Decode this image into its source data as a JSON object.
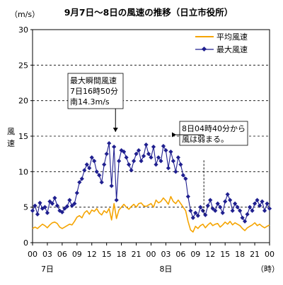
{
  "chart_data": {
    "type": "line",
    "title": "9月7日～8日の風速の推移（日立市役所）",
    "unit_label": "（m/s）",
    "ylabel": "風速",
    "x_unit_label": "（時）",
    "x_ticks": [
      "00",
      "03",
      "06",
      "09",
      "12",
      "15",
      "18",
      "21",
      "00",
      "03",
      "06",
      "09",
      "12",
      "15",
      "18",
      "21",
      "00"
    ],
    "x_day_labels": [
      {
        "tick_index": 1,
        "label": "7日"
      },
      {
        "tick_index": 9,
        "label": "8日"
      }
    ],
    "ylim": [
      0,
      30
    ],
    "y_ticks": [
      0,
      5,
      10,
      15,
      20,
      25,
      30
    ],
    "grid": "horizontal dashed",
    "legend_position": "top-right",
    "x_range_hours": [
      0,
      48
    ],
    "series": [
      {
        "name": "平均風速",
        "color": "#F5A400",
        "marker": "none",
        "x": [
          0,
          0.5,
          1,
          1.5,
          2,
          2.5,
          3,
          3.5,
          4,
          4.5,
          5,
          5.5,
          6,
          6.5,
          7,
          7.5,
          8,
          8.5,
          9,
          9.5,
          10,
          10.5,
          11,
          11.5,
          12,
          12.5,
          13,
          13.5,
          14,
          14.5,
          15,
          15.5,
          16,
          16.5,
          17,
          17.5,
          18,
          18.5,
          19,
          19.5,
          20,
          20.5,
          21,
          21.5,
          22,
          22.5,
          23,
          23.5,
          24,
          24.5,
          25,
          25.5,
          26,
          26.5,
          27,
          27.5,
          28,
          28.5,
          29,
          29.5,
          30,
          30.5,
          31,
          31.5,
          32,
          32.5,
          33,
          33.5,
          34,
          34.5,
          35,
          35.5,
          36,
          36.5,
          37,
          37.5,
          38,
          38.5,
          39,
          39.5,
          40,
          40.5,
          41,
          41.5,
          42,
          42.5,
          43,
          43.5,
          44,
          44.5,
          45,
          45.5,
          46,
          46.5,
          47,
          47.5,
          48
        ],
        "y": [
          2.0,
          2.2,
          2.0,
          2.3,
          2.6,
          2.4,
          2.1,
          2.5,
          2.8,
          2.9,
          2.7,
          2.2,
          2.0,
          2.2,
          2.4,
          2.6,
          2.5,
          3.0,
          3.6,
          3.8,
          3.5,
          4.2,
          4.5,
          4.0,
          4.6,
          4.4,
          4.8,
          4.2,
          3.9,
          4.5,
          4.2,
          4.8,
          3.2,
          5.5,
          3.4,
          4.6,
          5.0,
          5.4,
          5.0,
          4.7,
          5.1,
          5.4,
          5.0,
          5.5,
          5.6,
          5.2,
          5.1,
          5.3,
          5.5,
          5.0,
          6.0,
          5.6,
          5.8,
          6.3,
          5.9,
          5.4,
          6.5,
          5.8,
          5.5,
          6.0,
          5.5,
          5.0,
          4.5,
          3.0,
          1.8,
          1.5,
          2.3,
          2.0,
          2.4,
          2.6,
          2.1,
          2.5,
          2.8,
          2.4,
          2.6,
          2.7,
          2.2,
          2.5,
          2.9,
          2.6,
          3.0,
          2.5,
          2.8,
          2.6,
          2.4,
          2.0,
          1.7,
          2.1,
          2.3,
          2.5,
          2.8,
          2.4,
          2.6,
          2.3,
          2.1,
          2.3,
          2.5
        ]
      },
      {
        "name": "最大風速",
        "color": "#1F1F8F",
        "marker": "diamond",
        "x": [
          0,
          0.5,
          1,
          1.5,
          2,
          2.5,
          3,
          3.5,
          4,
          4.5,
          5,
          5.5,
          6,
          6.5,
          7,
          7.5,
          8,
          8.5,
          9,
          9.5,
          10,
          10.5,
          11,
          11.5,
          12,
          12.5,
          13,
          13.5,
          14,
          14.5,
          15,
          15.5,
          16,
          16.5,
          17,
          17.5,
          18,
          18.5,
          19,
          19.5,
          20,
          20.5,
          21,
          21.5,
          22,
          22.5,
          23,
          23.5,
          24,
          24.5,
          25,
          25.5,
          26,
          26.5,
          27,
          27.5,
          28,
          28.5,
          29,
          29.5,
          30,
          30.5,
          31,
          31.5,
          32,
          32.5,
          33,
          33.5,
          34,
          34.5,
          35,
          35.5,
          36,
          36.5,
          37,
          37.5,
          38,
          38.5,
          39,
          39.5,
          40,
          40.5,
          41,
          41.5,
          42,
          42.5,
          43,
          43.5,
          44,
          44.5,
          45,
          45.5,
          46,
          46.5,
          47,
          47.5,
          48
        ],
        "y": [
          4.5,
          5.2,
          4.0,
          5.6,
          4.8,
          5.0,
          4.2,
          5.8,
          5.5,
          6.3,
          5.2,
          4.5,
          4.3,
          4.8,
          5.1,
          6.0,
          5.2,
          5.5,
          7.0,
          8.5,
          9.0,
          10.2,
          11.0,
          10.5,
          12.0,
          11.5,
          10.0,
          9.5,
          8.5,
          11.0,
          12.5,
          14.0,
          8.0,
          13.5,
          6.0,
          11.5,
          13.0,
          12.8,
          12.0,
          11.0,
          10.2,
          11.5,
          12.5,
          13.0,
          11.5,
          12.2,
          13.8,
          12.5,
          12.0,
          13.5,
          11.0,
          12.0,
          11.5,
          13.6,
          13.0,
          10.5,
          12.8,
          11.5,
          10.0,
          12.0,
          11.0,
          9.5,
          9.0,
          6.5,
          4.5,
          3.5,
          4.2,
          3.8,
          5.0,
          4.5,
          3.9,
          5.2,
          6.0,
          4.8,
          4.5,
          5.5,
          5.0,
          4.2,
          5.8,
          6.8,
          6.0,
          4.5,
          5.5,
          5.0,
          4.5,
          3.5,
          3.0,
          4.0,
          5.0,
          4.5,
          5.5,
          6.0,
          5.2,
          5.8,
          4.5,
          5.5,
          4.8
        ]
      }
    ],
    "annotations": [
      {
        "lines": [
          "最大瞬間風速",
          "7日16時50分",
          "南14.3m/s"
        ],
        "arrow_to_hour": 16.8
      },
      {
        "lines": [
          "8日04時40分から",
          "風は弱まる。"
        ],
        "arrow_from_hour": 34.7
      }
    ]
  }
}
